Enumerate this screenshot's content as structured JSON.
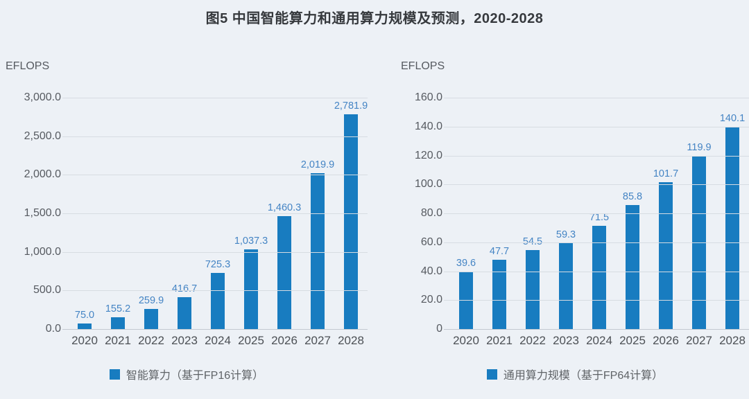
{
  "title": "图5 中国智能算力和通用算力规模及预测，2020-2028",
  "chart_data": [
    {
      "type": "bar",
      "title": "智能算力（基于FP16计算）",
      "unit_label": "EFLOPS",
      "ylabel": "EFLOPS",
      "xlabel": "",
      "categories": [
        "2020",
        "2021",
        "2022",
        "2023",
        "2024",
        "2025",
        "2026",
        "2027",
        "2028"
      ],
      "values": [
        75.0,
        155.2,
        259.9,
        416.7,
        725.3,
        1037.3,
        1460.3,
        2019.9,
        2781.9
      ],
      "value_labels": [
        "75.0",
        "155.2",
        "259.9",
        "416.7",
        "725.3",
        "1,037.3",
        "1,460.3",
        "2,019.9",
        "2,781.9"
      ],
      "y_ticks": [
        "3,000.0",
        "2,500.0",
        "2,000.0",
        "1,500.0",
        "1,000.0",
        "500.0",
        "0.0"
      ],
      "ylim": [
        0,
        3000
      ],
      "grid": true,
      "legend": "智能算力（基于FP16计算）",
      "legend_position": "bottom"
    },
    {
      "type": "bar",
      "title": "通用算力规模（基于FP64计算）",
      "unit_label": "EFLOPS",
      "ylabel": "EFLOPS",
      "xlabel": "",
      "categories": [
        "2020",
        "2021",
        "2022",
        "2023",
        "2024",
        "2025",
        "2026",
        "2027",
        "2028"
      ],
      "values": [
        39.6,
        47.7,
        54.5,
        59.3,
        71.5,
        85.8,
        101.7,
        119.9,
        140.1
      ],
      "value_labels": [
        "39.6",
        "47.7",
        "54.5",
        "59.3",
        "71.5",
        "85.8",
        "101.7",
        "119.9",
        "140.1"
      ],
      "y_ticks": [
        "160.0",
        "140.0",
        "120.0",
        "100.0",
        "80.0",
        "60.0",
        "40.0",
        "20.0",
        "0"
      ],
      "ylim": [
        0,
        160
      ],
      "grid": true,
      "legend": "通用算力规模（基于FP64计算）",
      "legend_position": "bottom"
    }
  ],
  "colors": {
    "bar": "#187cc0",
    "value_label": "#4484c4",
    "background": "#edf1f6",
    "gridline": "#d7dce2",
    "title_text": "#36393d",
    "axis_text": "#565a60",
    "legend_text": "#5f6367"
  }
}
